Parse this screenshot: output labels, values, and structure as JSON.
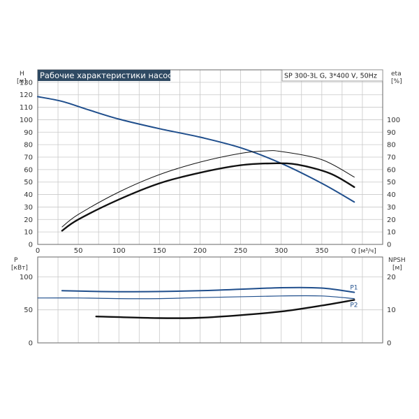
{
  "header": {
    "title": "Рабочие характеристики насоса",
    "model": "SP 300-3L G, 3*400 V, 50Hz"
  },
  "colors": {
    "blue": "#1f4e8c",
    "black": "#111111",
    "title_bg": "#2f4a63",
    "grid": "#c8c8c8"
  },
  "chart_data": [
    {
      "id": "top",
      "type": "line",
      "xlabel": "Q [м³/ч]",
      "ylabel_left": [
        "H",
        "[м]"
      ],
      "ylabel_right": [
        "eta",
        "[%]"
      ],
      "xlim": [
        0,
        425
      ],
      "ylim": [
        0,
        140
      ],
      "xticks": [
        0,
        50,
        100,
        150,
        200,
        250,
        300,
        350
      ],
      "yticks_left": [
        0,
        10,
        20,
        30,
        40,
        50,
        60,
        70,
        80,
        90,
        100,
        110,
        120,
        130
      ],
      "yticks_right": [
        0,
        10,
        20,
        30,
        40,
        50,
        60,
        70,
        80,
        90,
        100
      ],
      "grid": true,
      "series": [
        {
          "id": "H",
          "axis": "left",
          "color": "blue",
          "width": 2,
          "x": [
            0,
            30,
            60,
            100,
            150,
            200,
            250,
            300,
            350,
            390
          ],
          "y": [
            118.5,
            114.7,
            108.5,
            100.5,
            92.8,
            86,
            77.5,
            65,
            49,
            34
          ]
        },
        {
          "id": "eta_thin",
          "axis": "right",
          "color": "black",
          "width": 1,
          "x": [
            30,
            50,
            100,
            150,
            200,
            250,
            280,
            300,
            350,
            390
          ],
          "y": [
            14,
            24,
            42,
            56,
            66,
            73,
            75,
            74.5,
            68,
            54
          ]
        },
        {
          "id": "eta_thick",
          "axis": "right",
          "color": "black",
          "width": 2.4,
          "x": [
            30,
            50,
            100,
            150,
            200,
            250,
            290,
            320,
            360,
            390
          ],
          "y": [
            11,
            20,
            36,
            49,
            57.5,
            63.5,
            65,
            64,
            57,
            46
          ]
        }
      ]
    },
    {
      "id": "bottom",
      "type": "line",
      "ylabel_left": [
        "P",
        "[кВт]"
      ],
      "ylabel_right": [
        "NPSH",
        "[м]"
      ],
      "xlim": [
        0,
        425
      ],
      "ylim": [
        0,
        130
      ],
      "yticks_left": [
        0,
        50,
        100
      ],
      "yticks_right": [
        0,
        10,
        20
      ],
      "grid": true,
      "series": [
        {
          "id": "P1",
          "name": "P1",
          "axis": "left",
          "color": "blue",
          "width": 2,
          "x": [
            30,
            100,
            200,
            300,
            350,
            390
          ],
          "y": [
            79,
            77.5,
            79,
            83.5,
            83,
            76.5
          ]
        },
        {
          "id": "P2",
          "name": "P2",
          "axis": "left",
          "color": "blue",
          "width": 1.2,
          "x": [
            0,
            50,
            100,
            150,
            200,
            300,
            350,
            390
          ],
          "y": [
            68,
            68,
            67,
            67,
            68.5,
            71,
            71,
            67
          ]
        },
        {
          "id": "NPSH",
          "axis": "right",
          "color": "black",
          "width": 2.4,
          "x": [
            72,
            150,
            200,
            250,
            300,
            350,
            390
          ],
          "y": [
            8,
            7.5,
            7.6,
            8.4,
            9.5,
            11.3,
            13
          ]
        }
      ]
    }
  ]
}
